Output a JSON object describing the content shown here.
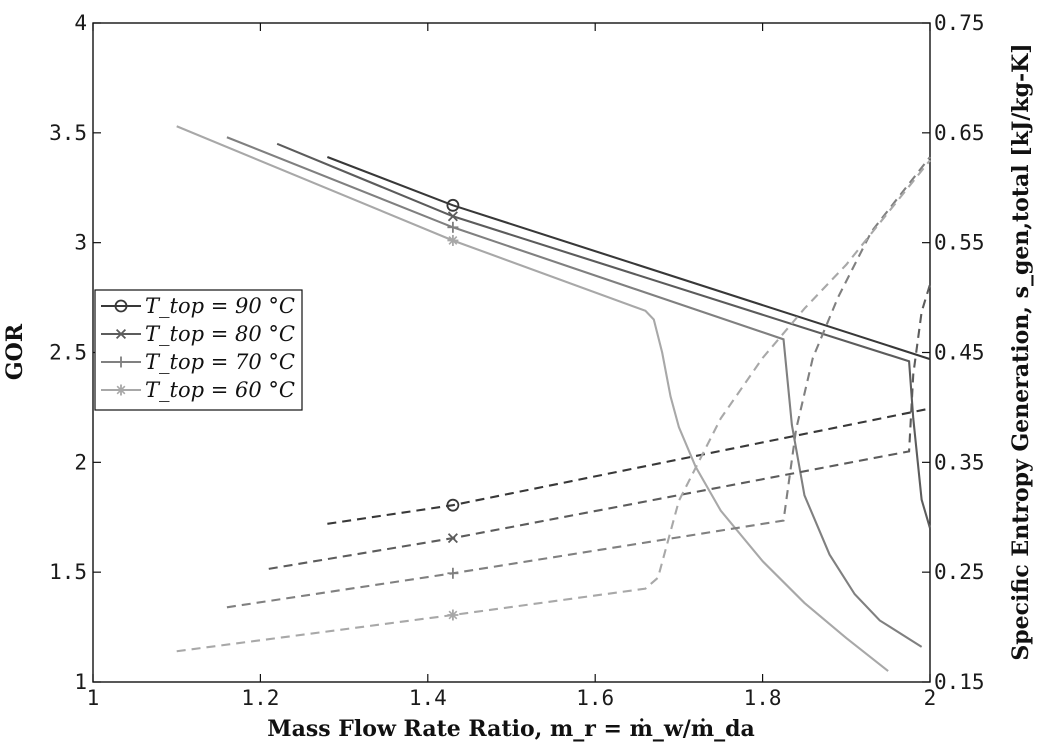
{
  "chart_data": {
    "type": "line",
    "xlabel": "Mass Flow Rate Ratio, m_r = ṁ_w/ṁ_da",
    "ylabel_left": "GOR",
    "ylabel_right": "Specific Entropy Generation, s_gen,total [kJ/kg-K]",
    "xlim": [
      1,
      2
    ],
    "ylim_left": [
      1,
      4
    ],
    "ylim_right": [
      0.15,
      0.75
    ],
    "xticks": [
      "1",
      "1.2",
      "1.4",
      "1.6",
      "1.8",
      "2"
    ],
    "yticks_left": [
      "1",
      "1.5",
      "2",
      "2.5",
      "3",
      "3.5",
      "4"
    ],
    "yticks_right": [
      "0.15",
      "0.25",
      "0.35",
      "0.45",
      "0.55",
      "0.65",
      "0.75"
    ],
    "grid": false,
    "legend_placement": "center-left",
    "legend": [
      {
        "label": "T_top = 90 °C",
        "marker": "circle",
        "color": "#383838"
      },
      {
        "label": "T_top = 80 °C",
        "marker": "x",
        "color": "#5c5c5c"
      },
      {
        "label": "T_top = 70 °C",
        "marker": "plus",
        "color": "#808080"
      },
      {
        "label": "T_top = 60 °C",
        "marker": "star",
        "color": "#a8a8a8"
      }
    ],
    "series": [
      {
        "name": "T_top = 90 °C",
        "axis": "left",
        "style": "solid",
        "color": "#383838",
        "marker": "circle",
        "marker_x": 1.43,
        "x": [
          1.28,
          1.43,
          2.0
        ],
        "y": [
          3.39,
          3.17,
          2.47
        ]
      },
      {
        "name": "T_top = 80 °C",
        "axis": "left",
        "style": "solid",
        "color": "#5c5c5c",
        "marker": "x",
        "marker_x": 1.43,
        "x": [
          1.22,
          1.43,
          1.975,
          1.98,
          1.99,
          2.0
        ],
        "y": [
          3.45,
          3.12,
          2.46,
          2.2,
          1.83,
          1.7
        ]
      },
      {
        "name": "T_top = 70 °C",
        "axis": "left",
        "style": "solid",
        "color": "#808080",
        "marker": "plus",
        "marker_x": 1.43,
        "x": [
          1.16,
          1.43,
          1.825,
          1.835,
          1.85,
          1.88,
          1.91,
          1.94,
          1.99
        ],
        "y": [
          3.48,
          3.07,
          2.56,
          2.17,
          1.85,
          1.58,
          1.4,
          1.28,
          1.16
        ]
      },
      {
        "name": "T_top = 60 °C",
        "axis": "left",
        "style": "solid",
        "color": "#a8a8a8",
        "marker": "star",
        "marker_x": 1.43,
        "x": [
          1.1,
          1.43,
          1.66,
          1.67,
          1.68,
          1.69,
          1.7,
          1.72,
          1.75,
          1.8,
          1.85,
          1.9,
          1.95
        ],
        "y": [
          3.53,
          3.01,
          2.69,
          2.65,
          2.5,
          2.3,
          2.16,
          1.98,
          1.78,
          1.55,
          1.36,
          1.2,
          1.05
        ]
      },
      {
        "name": "T_top = 90 °C",
        "axis": "right",
        "style": "dashed",
        "color": "#383838",
        "marker": "circle",
        "marker_x": 1.43,
        "x": [
          1.28,
          1.43,
          2.0
        ],
        "y": [
          0.294,
          0.311,
          0.399
        ]
      },
      {
        "name": "T_top = 80 °C",
        "axis": "right",
        "style": "dashed",
        "color": "#5c5c5c",
        "marker": "x",
        "marker_x": 1.43,
        "x": [
          1.21,
          1.43,
          1.975,
          1.98,
          1.99,
          2.0
        ],
        "y": [
          0.253,
          0.281,
          0.36,
          0.43,
          0.487,
          0.512
        ]
      },
      {
        "name": "T_top = 70 °C",
        "axis": "right",
        "style": "dashed",
        "color": "#808080",
        "marker": "plus",
        "marker_x": 1.43,
        "x": [
          1.16,
          1.43,
          1.825,
          1.84,
          1.86,
          1.89,
          1.93,
          2.0
        ],
        "y": [
          0.218,
          0.249,
          0.297,
          0.38,
          0.445,
          0.5,
          0.56,
          0.628
        ]
      },
      {
        "name": "T_top = 60 °C",
        "axis": "right",
        "style": "dashed",
        "color": "#a8a8a8",
        "marker": "star",
        "marker_x": 1.43,
        "x": [
          1.1,
          1.43,
          1.66,
          1.675,
          1.7,
          1.75,
          1.8,
          1.85,
          1.9,
          2.0
        ],
        "y": [
          0.178,
          0.211,
          0.235,
          0.245,
          0.315,
          0.39,
          0.445,
          0.49,
          0.53,
          0.625
        ]
      }
    ]
  }
}
